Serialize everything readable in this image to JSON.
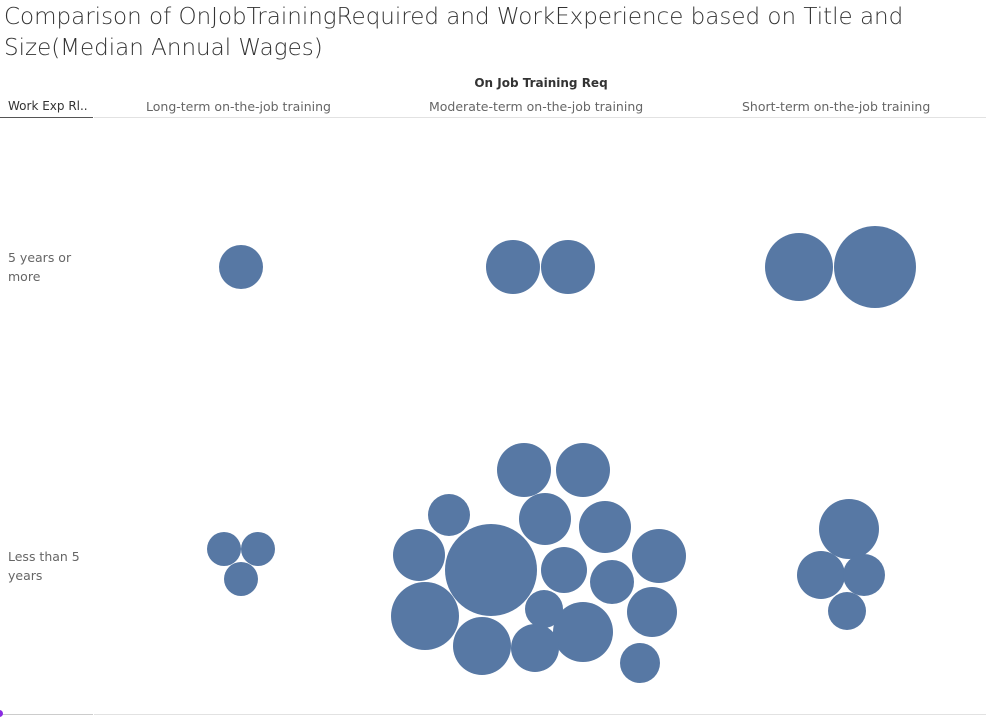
{
  "title": "Comparison of OnJobTrainingRequired and WorkExperience based on Title and Size(Median Annual Wages)",
  "column_group_header": "On Job Training Req",
  "row_header_label": "Work Exp Rl..",
  "columns": [
    "Long-term on-the-job training",
    "Moderate-term on-the-job training",
    "Short-term on-the-job training"
  ],
  "rows": [
    "5 years or more",
    "Less than 5 years"
  ],
  "colors": {
    "bubble": "#5778a4"
  },
  "chart_data": {
    "type": "packed-bubble",
    "size_measure": "Median Annual Wages",
    "color": "#5778a4",
    "cells": [
      {
        "row": "5 years or more",
        "column": "Long-term on-the-job training",
        "bubble_sizes": [
          22
        ]
      },
      {
        "row": "5 years or more",
        "column": "Moderate-term on-the-job training",
        "bubble_sizes": [
          27,
          27
        ]
      },
      {
        "row": "5 years or more",
        "column": "Short-term on-the-job training",
        "bubble_sizes": [
          34,
          41
        ]
      },
      {
        "row": "Less than 5 years",
        "column": "Long-term on-the-job training",
        "bubble_sizes": [
          17,
          17,
          17
        ]
      },
      {
        "row": "Less than 5 years",
        "column": "Moderate-term on-the-job training",
        "bubble_sizes": [
          46,
          34,
          30,
          29,
          27,
          27,
          27,
          26,
          26,
          26,
          25,
          24,
          23,
          22,
          21,
          20,
          19
        ]
      },
      {
        "row": "Less than 5 years",
        "column": "Short-term on-the-job training",
        "bubble_sizes": [
          30,
          24,
          21,
          19
        ]
      }
    ]
  }
}
